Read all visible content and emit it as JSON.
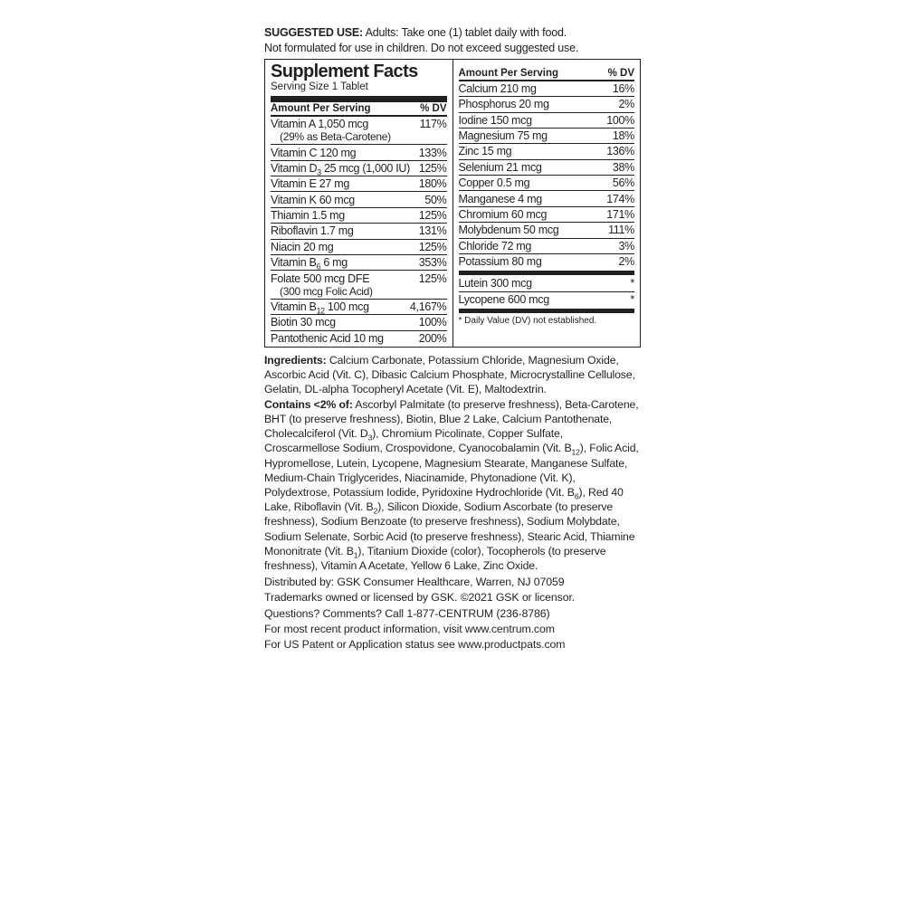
{
  "suggested": {
    "label": "SUGGESTED USE:",
    "text1": " Adults: Take one (1) tablet daily with food.",
    "text2": "Not formulated for use in children. Do not exceed suggested use."
  },
  "facts": {
    "title": "Supplement Facts",
    "serving": "Serving Size 1 Tablet",
    "header_amount": "Amount Per Serving",
    "header_dv": "% DV",
    "left": [
      {
        "name": "Vitamin A 1,050 mcg",
        "dv": "117%",
        "sub": "(29% as Beta-Carotene)"
      },
      {
        "name": "Vitamin C 120 mg",
        "dv": "133%"
      },
      {
        "name": "Vitamin D₃ 25 mcg (1,000 IU)",
        "dv": "125%"
      },
      {
        "name": "Vitamin E 27 mg",
        "dv": "180%"
      },
      {
        "name": "Vitamin K 60 mcg",
        "dv": "50%"
      },
      {
        "name": "Thiamin 1.5 mg",
        "dv": "125%"
      },
      {
        "name": "Riboflavin 1.7 mg",
        "dv": "131%"
      },
      {
        "name": "Niacin 20 mg",
        "dv": "125%"
      },
      {
        "name": "Vitamin B₆ 6 mg",
        "dv": "353%"
      },
      {
        "name": "Folate 500 mcg DFE",
        "dv": "125%",
        "sub": "(300 mcg Folic Acid)"
      },
      {
        "name": "Vitamin B₁₂ 100 mcg",
        "dv": "4,167%"
      },
      {
        "name": "Biotin 30 mcg",
        "dv": "100%"
      },
      {
        "name": "Pantothenic Acid 10 mg",
        "dv": "200%"
      }
    ],
    "right": [
      {
        "name": "Calcium 210 mg",
        "dv": "16%"
      },
      {
        "name": "Phosphorus 20 mg",
        "dv": "2%"
      },
      {
        "name": "Iodine 150 mcg",
        "dv": "100%"
      },
      {
        "name": "Magnesium 75 mg",
        "dv": "18%"
      },
      {
        "name": "Zinc 15 mg",
        "dv": "136%"
      },
      {
        "name": "Selenium 21 mcg",
        "dv": "38%"
      },
      {
        "name": "Copper 0.5 mg",
        "dv": "56%"
      },
      {
        "name": "Manganese 4 mg",
        "dv": "174%"
      },
      {
        "name": "Chromium 60 mcg",
        "dv": "171%"
      },
      {
        "name": "Molybdenum 50 mcg",
        "dv": "111%"
      },
      {
        "name": "Chloride 72 mg",
        "dv": "3%"
      },
      {
        "name": "Potassium 80 mg",
        "dv": "2%"
      }
    ],
    "right2": [
      {
        "name": "Lutein 300 mcg",
        "dv": "*"
      },
      {
        "name": "Lycopene 600 mcg",
        "dv": "*"
      }
    ],
    "footnote": "* Daily Value (DV) not established."
  },
  "ingredients": {
    "label": "Ingredients:",
    "text": " Calcium Carbonate, Potassium Chloride, Magnesium Oxide, Ascorbic Acid (Vit. C), Dibasic Calcium Phosphate, Microcrystalline Cellulose, Gelatin, DL-alpha Tocopheryl Acetate (Vit. E), Maltodextrin.",
    "contains_label": "Contains <2% of:",
    "contains_text": " Ascorbyl Palmitate (to preserve freshness), Beta-Carotene, BHT (to preserve freshness), Biotin, Blue 2 Lake, Calcium Pantothenate, Cholecalciferol (Vit. D₃), Chromium Picolinate, Copper Sulfate, Croscarmellose Sodium, Crospovidone, Cyanocobalamin (Vit. B₁₂), Folic Acid, Hypromellose, Lutein, Lycopene, Magnesium Stearate, Manganese Sulfate, Medium-Chain Triglycerides, Niacinamide, Phytonadione (Vit. K), Polydextrose, Potassium Iodide, Pyridoxine Hydrochloride (Vit. B₆), Red 40 Lake, Riboflavin (Vit. B₂), Silicon Dioxide, Sodium Ascorbate (to preserve freshness), Sodium Benzoate (to preserve freshness), Sodium Molybdate, Sodium Selenate, Sorbic Acid (to preserve freshness), Stearic Acid, Thiamine Mononitrate (Vit. B₁), Titanium Dioxide (color), Tocopherols (to preserve freshness), Vitamin A Acetate, Yellow 6 Lake, Zinc Oxide."
  },
  "footer": {
    "l1": "Distributed by: GSK Consumer Healthcare, Warren, NJ 07059",
    "l2": "Trademarks owned or licensed by GSK. ©2021 GSK or licensor.",
    "l3": "Questions? Comments?  Call 1-877-CENTRUM (236-8786)",
    "l4": "For most recent product information, visit www.centrum.com",
    "l5": "For US Patent or Application status see www.productpats.com"
  }
}
